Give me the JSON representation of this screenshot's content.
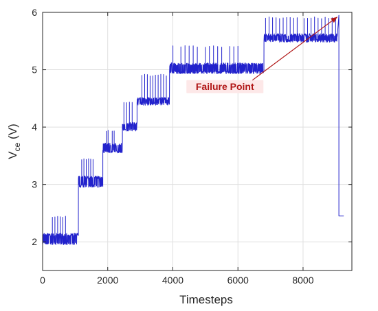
{
  "chart_data": {
    "type": "line",
    "xlabel": "Timesteps",
    "ylabel_main": "V",
    "ylabel_sub": "ce",
    "ylabel_unit": "(V)",
    "xlim": [
      0,
      9500
    ],
    "ylim": [
      1.5,
      6
    ],
    "xticks": [
      0,
      2000,
      4000,
      6000,
      8000
    ],
    "yticks": [
      2,
      3,
      4,
      5,
      6
    ],
    "xtick_labels": [
      "0",
      "2000",
      "4000",
      "6000",
      "8000"
    ],
    "ytick_labels": [
      "2",
      "3",
      "4",
      "5",
      "6"
    ],
    "grid": true,
    "series": [
      {
        "color": "#2222cc",
        "segments": [
          {
            "x_start": 0,
            "x_end": 1100,
            "low": 1.95,
            "base": 2.05,
            "high": 2.15,
            "spike_top": 2.45,
            "spike_start": 300,
            "spike_end": 700,
            "spike_count": 6
          },
          {
            "x_start": 1100,
            "x_end": 1850,
            "low": 2.95,
            "base": 3.05,
            "high": 3.15,
            "spike_top": 3.45,
            "spike_start": 1200,
            "spike_end": 1550,
            "spike_count": 6
          },
          {
            "x_start": 1850,
            "x_end": 2450,
            "low": 3.55,
            "base": 3.65,
            "high": 3.72,
            "spike_top": 3.95,
            "spike_start": 1950,
            "spike_end": 2200,
            "spike_count": 5
          },
          {
            "x_start": 2450,
            "x_end": 2900,
            "low": 3.93,
            "base": 4.0,
            "high": 4.08,
            "spike_top": 4.45,
            "spike_start": 2500,
            "spike_end": 2750,
            "spike_count": 4
          },
          {
            "x_start": 2900,
            "x_end": 3900,
            "low": 4.38,
            "base": 4.45,
            "high": 4.52,
            "spike_top": 4.92,
            "spike_start": 3050,
            "spike_end": 3800,
            "spike_count": 10
          },
          {
            "x_start": 3900,
            "x_end": 6800,
            "low": 4.93,
            "base": 5.02,
            "high": 5.12,
            "spike_top": 5.42,
            "spike_start": 4000,
            "spike_end": 6000,
            "spike_count": 17
          },
          {
            "x_start": 6800,
            "x_end": 9050,
            "low": 5.48,
            "base": 5.55,
            "high": 5.63,
            "spike_top": 5.92,
            "spike_start": 6850,
            "spike_end": 9000,
            "spike_count": 21
          }
        ],
        "failure_drop": {
          "x": 9100,
          "y_from": 5.95,
          "y_to": 2.45,
          "x_end": 9250
        }
      }
    ],
    "annotation": {
      "text": "Failure Point",
      "x_text": 5600,
      "y_text": 4.65,
      "x_arrow": 9050,
      "y_arrow": 5.92,
      "color": "#b01515"
    }
  }
}
